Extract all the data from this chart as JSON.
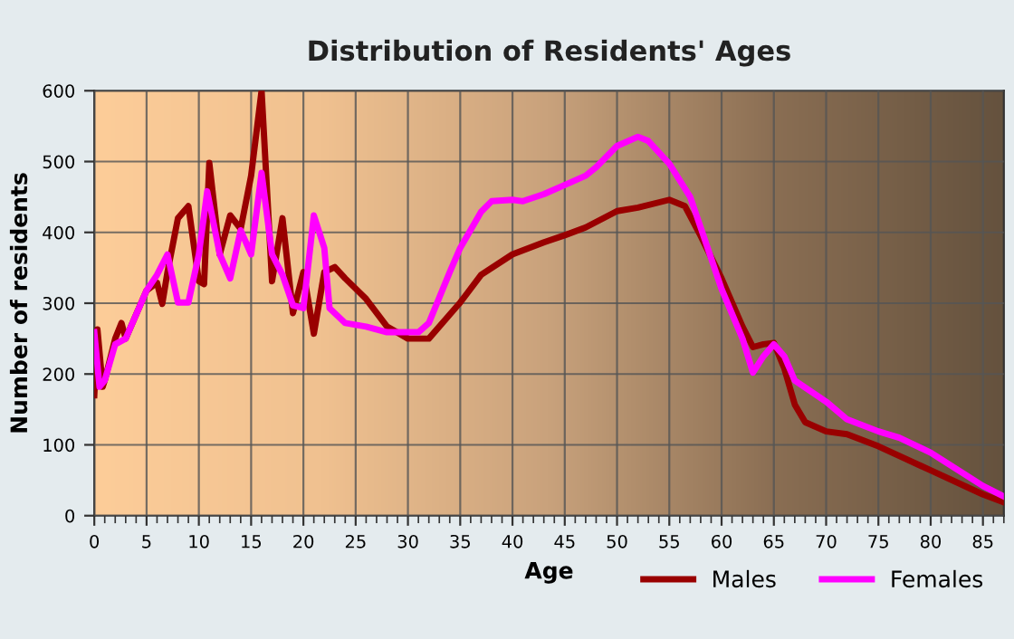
{
  "chart_data": {
    "type": "line",
    "title": "Distribution of Residents' Ages",
    "xlabel": "Age",
    "ylabel": "Number of residents",
    "xlim": [
      0,
      87
    ],
    "xticks": [
      0,
      5,
      10,
      15,
      20,
      25,
      30,
      35,
      40,
      45,
      50,
      55,
      60,
      65,
      70,
      75,
      80,
      85
    ],
    "ylim": [
      0,
      600
    ],
    "yticks": [
      0,
      100,
      200,
      300,
      400,
      500,
      600
    ],
    "grid": true,
    "legend": "bottom right",
    "line_style": "solid",
    "marker": "none",
    "series": [
      {
        "name": "Males",
        "color": "#990000",
        "x": [
          0,
          0.3,
          0.8,
          1,
          2,
          2.6,
          3,
          5,
          6,
          6.5,
          7,
          8,
          9,
          10,
          10.5,
          11,
          12,
          13,
          14,
          15,
          16,
          17,
          18,
          19,
          20,
          21,
          22,
          23,
          24,
          26,
          28,
          30,
          32,
          35,
          37,
          40,
          43,
          45,
          47,
          50,
          52,
          55,
          56.5,
          58,
          60,
          62,
          63,
          64,
          65,
          66,
          67,
          68,
          70,
          72,
          75,
          80,
          85,
          87
        ],
        "values": [
          170,
          263,
          182,
          191,
          250,
          272,
          250,
          318,
          329,
          299,
          344,
          420,
          437,
          331,
          327,
          498,
          369,
          424,
          405,
          480,
          600,
          331,
          420,
          286,
          344,
          257,
          344,
          351,
          335,
          306,
          267,
          250,
          250,
          301,
          340,
          369,
          386,
          396,
          407,
          430,
          435,
          446,
          437,
          395,
          335,
          267,
          238,
          242,
          244,
          208,
          157,
          132,
          119,
          115,
          98,
          64,
          30,
          19
        ]
      },
      {
        "name": "Females",
        "color": "#ff00ff",
        "x": [
          0,
          0.5,
          1,
          2,
          3,
          4,
          5,
          6,
          7,
          8,
          9,
          10,
          10.8,
          12,
          13,
          14,
          15,
          16,
          17,
          18,
          19,
          20,
          21,
          22,
          22.5,
          24,
          26,
          28,
          30,
          31,
          32,
          34,
          35,
          37,
          38,
          40,
          41,
          43,
          45,
          47,
          48,
          50,
          52,
          53,
          55,
          57,
          58,
          60,
          62,
          63,
          64,
          65,
          66,
          67,
          70,
          72,
          75,
          77,
          80,
          85,
          87
        ],
        "values": [
          259,
          182,
          191,
          242,
          250,
          284,
          318,
          340,
          369,
          301,
          301,
          369,
          458,
          369,
          335,
          403,
          369,
          484,
          369,
          340,
          297,
          293,
          424,
          378,
          293,
          272,
          267,
          259,
          259,
          259,
          272,
          344,
          378,
          429,
          444,
          446,
          444,
          454,
          467,
          480,
          492,
          522,
          535,
          529,
          497,
          450,
          407,
          320,
          250,
          202,
          225,
          242,
          225,
          191,
          161,
          136,
          119,
          110,
          89,
          42,
          27
        ]
      }
    ]
  }
}
